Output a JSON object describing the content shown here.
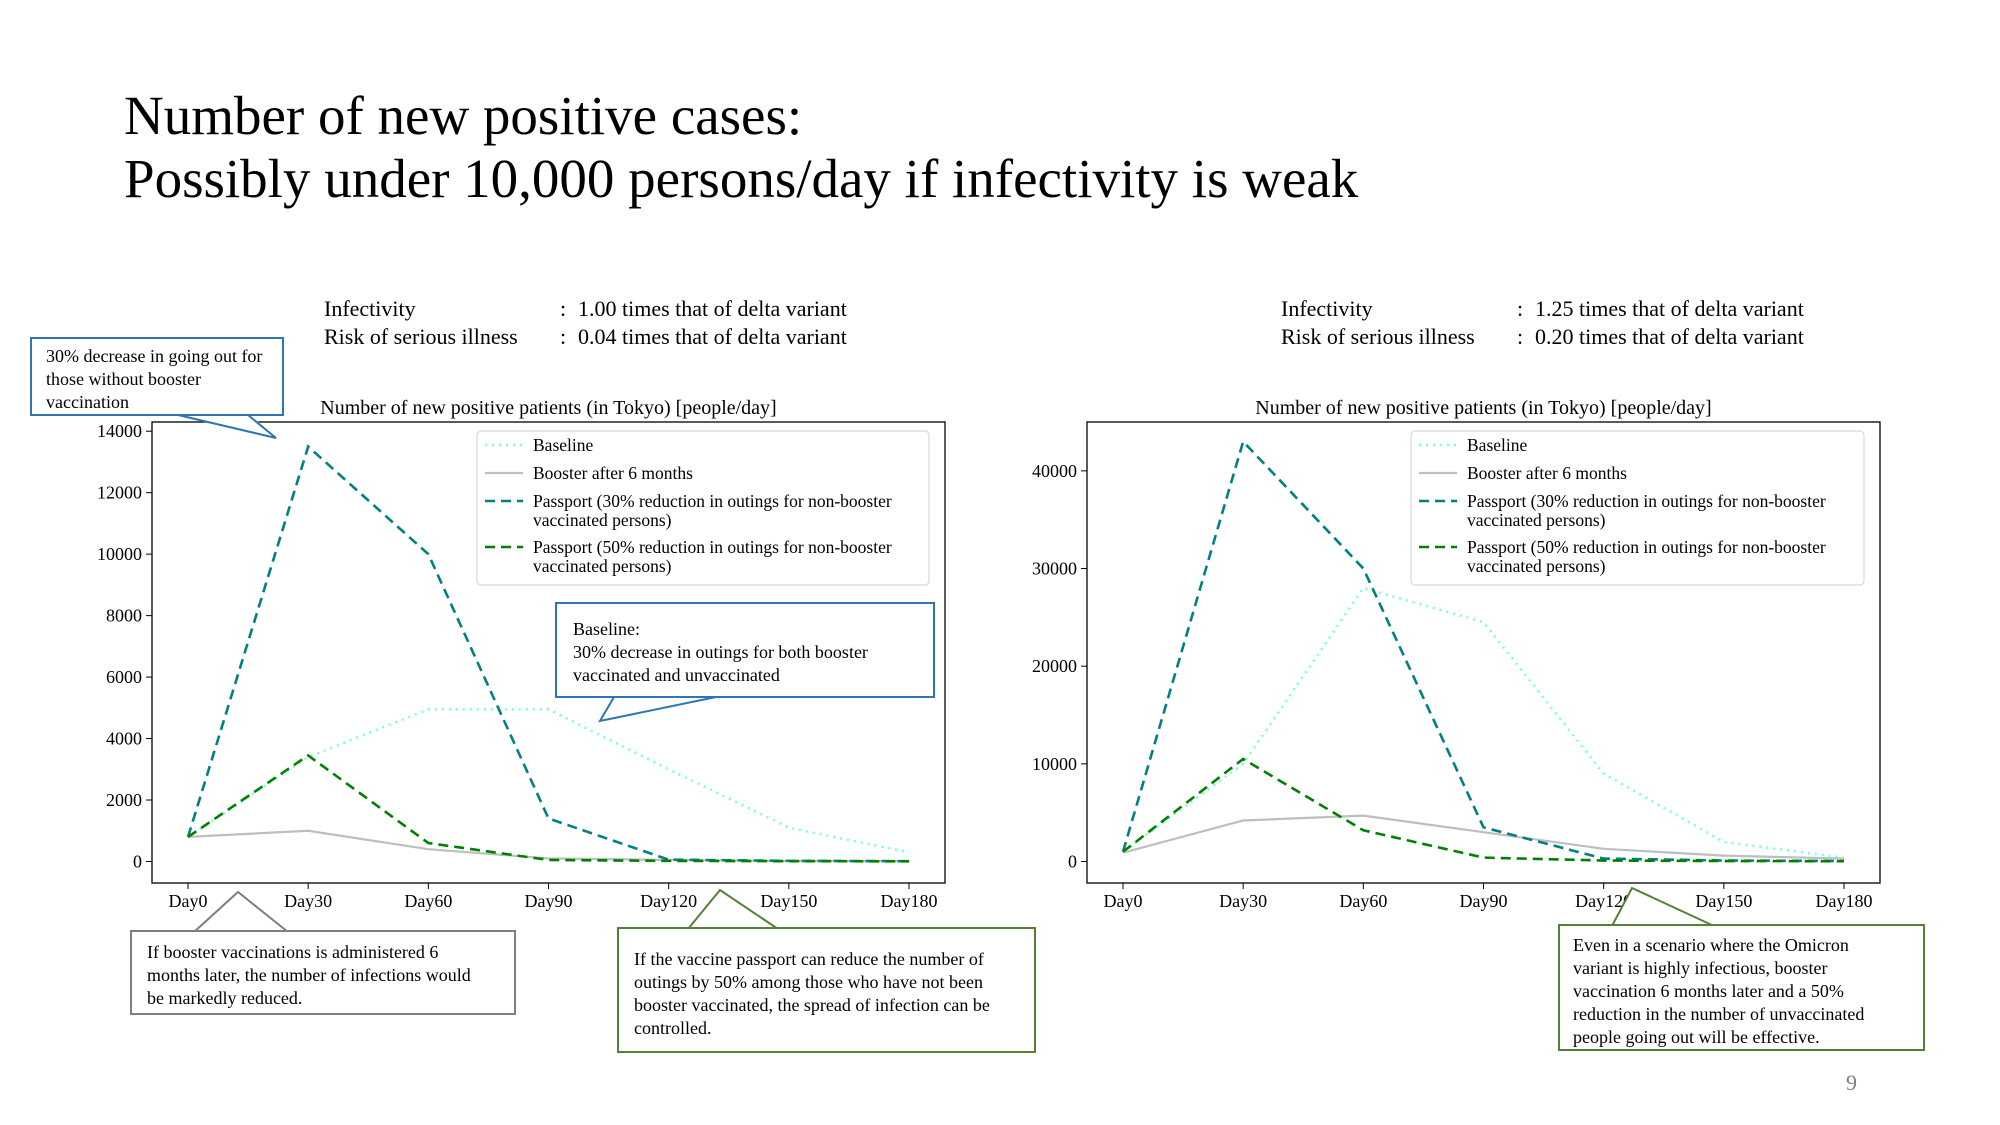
{
  "title": {
    "line1": "Number of new positive cases:",
    "line2": "Possibly under 10,000 persons/day if infectivity is weak"
  },
  "page_number": "9",
  "colors": {
    "baseline": "#7fffd4",
    "booster": "#bebebe",
    "passport30": "#008080",
    "passport50": "#008000",
    "callout_blue": "#2e75b6",
    "callout_gray": "#7f7f7f",
    "callout_green": "#548235"
  },
  "left_params": {
    "infectivity_label": "Infectivity",
    "infectivity_value": "1.00 times that of delta variant",
    "risk_label": "Risk of serious illness",
    "risk_value": "0.04 times that of delta variant",
    "colon": ":"
  },
  "right_params": {
    "infectivity_label": "Infectivity",
    "infectivity_value": "1.25 times that of delta variant",
    "risk_label": "Risk of serious illness",
    "risk_value": "0.20 times that of delta variant",
    "colon": ":"
  },
  "chart_data": [
    {
      "type": "line",
      "title": "Number of new positive patients (in Tokyo) [people/day]",
      "categories": [
        "Day0",
        "Day30",
        "Day60",
        "Day90",
        "Day120",
        "Day150",
        "Day180"
      ],
      "ylim": [
        -700,
        14300
      ],
      "yticks": [
        0,
        2000,
        4000,
        6000,
        8000,
        10000,
        12000,
        14000
      ],
      "legend_position": "top-right",
      "grid": false,
      "series": [
        {
          "name": "Baseline",
          "style": "dotted",
          "color": "#7fffd4",
          "values": [
            800,
            3400,
            4950,
            4950,
            3000,
            1100,
            300
          ]
        },
        {
          "name": "Booster after 6 months",
          "style": "solid",
          "color": "#bebebe",
          "values": [
            800,
            1000,
            400,
            100,
            50,
            20,
            10
          ]
        },
        {
          "name": "Passport (30% reduction in outings for non-booster vaccinated persons)",
          "line1": "Passport (30% reduction in outings for non-booster",
          "line2": "vaccinated persons)",
          "style": "dashed",
          "color": "#008080",
          "values": [
            800,
            13500,
            10000,
            1400,
            60,
            20,
            10
          ]
        },
        {
          "name": "Passport (50% reduction in outings for non-booster vaccinated persons)",
          "line1": "Passport (50% reduction in outings for non-booster",
          "line2": "vaccinated persons)",
          "style": "dashed",
          "color": "#008000",
          "values": [
            800,
            3450,
            600,
            50,
            20,
            10,
            5
          ]
        }
      ]
    },
    {
      "type": "line",
      "title": "Number of new positive patients (in Tokyo) [people/day]",
      "categories": [
        "Day0",
        "Day30",
        "Day60",
        "Day90",
        "Day120",
        "Day150",
        "Day180"
      ],
      "ylim": [
        -2200,
        45000
      ],
      "yticks": [
        0,
        10000,
        20000,
        30000,
        40000
      ],
      "legend_position": "top-right",
      "grid": false,
      "series": [
        {
          "name": "Baseline",
          "style": "dotted",
          "color": "#7fffd4",
          "values": [
            1000,
            10000,
            28000,
            24500,
            9000,
            2000,
            400
          ]
        },
        {
          "name": "Booster after 6 months",
          "style": "solid",
          "color": "#bebebe",
          "values": [
            900,
            4200,
            4700,
            3000,
            1300,
            600,
            300
          ]
        },
        {
          "name": "Passport (30% reduction in outings for non-booster vaccinated persons)",
          "line1": "Passport (30% reduction in outings for non-booster",
          "line2": "vaccinated persons)",
          "style": "dashed",
          "color": "#008080",
          "values": [
            1000,
            43000,
            30000,
            3500,
            300,
            100,
            50
          ]
        },
        {
          "name": "Passport (50% reduction in outings for non-booster vaccinated persons)",
          "line1": "Passport (50% reduction in outings for non-booster",
          "line2": "vaccinated persons)",
          "style": "dashed",
          "color": "#008000",
          "values": [
            1000,
            10500,
            3200,
            400,
            100,
            50,
            30
          ]
        }
      ]
    }
  ],
  "callouts": {
    "booster_30": {
      "line1": "30% decrease in going out for",
      "line2": "those without booster",
      "line3": "vaccination"
    },
    "baseline": {
      "line1": "Baseline:",
      "line2": "30% decrease in outings for both booster",
      "line3": "vaccinated and unvaccinated"
    },
    "booster_6m": {
      "line1": "If booster vaccinations is administered 6",
      "line2": "months later, the number of infections would",
      "line3": "be markedly reduced."
    },
    "passport": {
      "line1": "If the vaccine passport can reduce the number of",
      "line2": "outings by 50% among those who have not been",
      "line3": "booster vaccinated, the spread of infection can be",
      "line4": "controlled."
    },
    "omicron": {
      "line1": "Even in a scenario where the Omicron",
      "line2": "variant is highly infectious, booster",
      "line3": "vaccination 6 months later and a 50%",
      "line4": "reduction in the number of unvaccinated",
      "line5": "people going out will be effective."
    }
  }
}
